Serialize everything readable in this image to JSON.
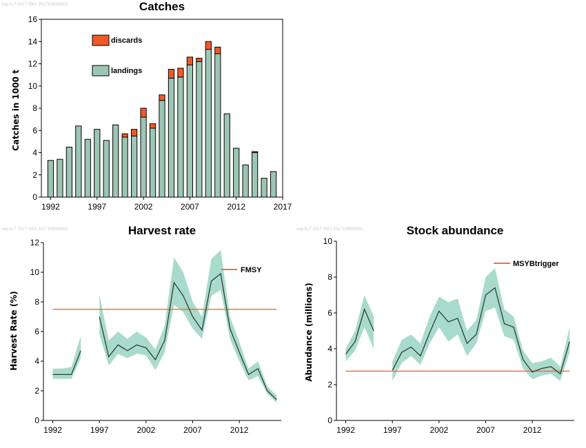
{
  "watermarks": {
    "catches": "nep.fu.7  2017  0501  2017109030501",
    "harvest": "nep.fu.7  2017  0501  2017109030501",
    "abundance": "nep.fu.7  2017  0501  2017109030501"
  },
  "colors": {
    "landings": "#9dc5b5",
    "discards": "#f05a28",
    "band": "#a9dbcc",
    "line": "#2d3b37",
    "reference": "#f07040"
  },
  "chart_data": [
    {
      "type": "bar",
      "title": "Catches",
      "ylabel": "Catches in 1000 t",
      "xlabel": "",
      "ylim": [
        0,
        16
      ],
      "yticks": [
        0,
        2,
        4,
        6,
        8,
        10,
        12,
        14,
        16
      ],
      "xlim": [
        1991,
        2017
      ],
      "xticks": [
        1992,
        1997,
        2002,
        2007,
        2012,
        2017
      ],
      "legend_position": "top-left",
      "stacked": true,
      "x": [
        1992,
        1993,
        1994,
        1995,
        1996,
        1997,
        1998,
        1999,
        2000,
        2001,
        2002,
        2003,
        2004,
        2005,
        2006,
        2007,
        2008,
        2009,
        2010,
        2011,
        2012,
        2013,
        2014,
        2015,
        2016
      ],
      "series": [
        {
          "name": "landings",
          "values": [
            3.3,
            3.4,
            4.5,
            6.4,
            5.2,
            6.1,
            5.1,
            6.5,
            5.4,
            5.5,
            7.2,
            6.2,
            8.7,
            10.7,
            10.8,
            11.9,
            12.2,
            13.3,
            12.9,
            7.5,
            4.4,
            2.9,
            4.0,
            1.7,
            2.3
          ]
        },
        {
          "name": "discards",
          "values": [
            0,
            0,
            0,
            0,
            0,
            0,
            0,
            0,
            0.3,
            0.6,
            0.8,
            0.4,
            0.5,
            0.8,
            0.8,
            0.7,
            0.3,
            0.7,
            0.6,
            0,
            0,
            0,
            0.1,
            0,
            0
          ]
        }
      ]
    },
    {
      "type": "line",
      "title": "Harvest rate",
      "ylabel": "Harvest Rate (%)",
      "xlabel": "",
      "ylim": [
        0,
        12
      ],
      "yticks": [
        0,
        2,
        4,
        6,
        8,
        10,
        12
      ],
      "xlim": [
        1991,
        2016.5
      ],
      "xticks": [
        1992,
        1997,
        2002,
        2007,
        2012
      ],
      "legend_position": "top-right",
      "reference": {
        "name": "FMSY",
        "value": 7.5
      },
      "segments": [
        {
          "x": [
            1992,
            1993,
            1994,
            1995
          ],
          "y": [
            3.1,
            3.1,
            3.1,
            4.7
          ],
          "low": [
            2.8,
            2.8,
            2.8,
            4.2
          ],
          "high": [
            3.5,
            3.5,
            3.6,
            5.7
          ]
        },
        {
          "x": [
            1997,
            1998,
            1999,
            2000,
            2001,
            2002,
            2003,
            2004,
            2005,
            2006,
            2007,
            2008,
            2009,
            2010,
            2011,
            2012,
            2013,
            2014,
            2015,
            2016
          ],
          "y": [
            7.0,
            4.3,
            5.1,
            4.7,
            5.1,
            4.9,
            4.1,
            5.4,
            9.3,
            8.4,
            7.0,
            6.1,
            9.4,
            9.9,
            6.2,
            4.6,
            3.1,
            3.5,
            2.0,
            1.4
          ],
          "low": [
            5.8,
            3.7,
            4.5,
            4.2,
            4.5,
            4.4,
            3.4,
            4.6,
            7.8,
            7.3,
            6.2,
            5.5,
            8.4,
            8.8,
            5.5,
            4.0,
            2.7,
            3.0,
            1.8,
            1.2
          ],
          "high": [
            8.5,
            5.4,
            6.0,
            5.5,
            6.0,
            5.6,
            4.8,
            6.4,
            11.0,
            10.0,
            8.0,
            7.0,
            10.9,
            11.5,
            7.0,
            5.3,
            3.5,
            4.0,
            2.3,
            1.7
          ]
        }
      ]
    },
    {
      "type": "line",
      "title": "Stock abundance",
      "ylabel": "Abundance (millions)",
      "xlabel": "",
      "ylim": [
        0,
        10
      ],
      "yticks": [
        0,
        2,
        4,
        6,
        8,
        10
      ],
      "xlim": [
        1991,
        2016.5
      ],
      "xticks": [
        1992,
        1997,
        2002,
        2007,
        2012
      ],
      "legend_position": "top-right",
      "reference": {
        "name": "MSYBtrigger",
        "value": 2.75
      },
      "segments": [
        {
          "x": [
            1992,
            1993,
            1994,
            1995
          ],
          "y": [
            3.7,
            4.4,
            6.2,
            5.0
          ],
          "low": [
            3.3,
            3.9,
            5.2,
            4.0
          ],
          "high": [
            4.0,
            5.0,
            7.0,
            5.8
          ]
        },
        {
          "x": [
            1997,
            1998,
            1999,
            2000,
            2001,
            2002,
            2003,
            2004,
            2005,
            2006,
            2007,
            2008,
            2009,
            2010,
            2011,
            2012,
            2013,
            2014,
            2015,
            2016
          ],
          "y": [
            2.8,
            3.8,
            4.1,
            3.6,
            4.9,
            6.1,
            5.5,
            5.7,
            4.3,
            4.8,
            7.0,
            7.4,
            5.4,
            5.2,
            3.4,
            2.7,
            2.9,
            3.0,
            2.6,
            4.4
          ],
          "low": [
            2.2,
            3.2,
            3.6,
            3.1,
            4.3,
            5.2,
            4.4,
            4.8,
            3.6,
            4.3,
            6.1,
            6.3,
            4.7,
            4.5,
            2.9,
            2.3,
            2.5,
            2.6,
            2.2,
            3.8
          ],
          "high": [
            3.3,
            4.5,
            4.8,
            4.3,
            5.8,
            6.9,
            6.6,
            6.8,
            5.0,
            5.6,
            8.0,
            8.5,
            6.2,
            5.8,
            3.9,
            3.2,
            3.3,
            3.5,
            3.0,
            5.2
          ]
        }
      ]
    }
  ]
}
